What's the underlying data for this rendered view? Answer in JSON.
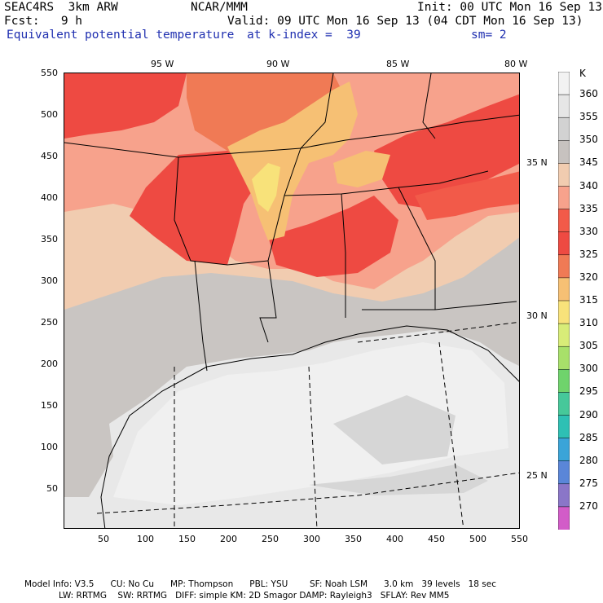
{
  "header": {
    "model": "SEAC4RS  3km ARW",
    "org": "NCAR/MMM",
    "init": "Init: 00 UTC Mon 16 Sep 13",
    "fcst": "Fcst:   9 h",
    "valid": "Valid: 09 UTC Mon 16 Sep 13 (04 CDT Mon 16 Sep 13)",
    "field": "Equivalent potential temperature",
    "kindex": "at k-index =  39",
    "smooth": "sm= 2"
  },
  "axes": {
    "x_ticks": [
      "50",
      "100",
      "150",
      "200",
      "250",
      "300",
      "350",
      "400",
      "450",
      "500",
      "550"
    ],
    "y_ticks": [
      "50",
      "100",
      "150",
      "200",
      "250",
      "300",
      "350",
      "400",
      "450",
      "500",
      "550"
    ],
    "lon_labels": [
      "95 W",
      "90 W",
      "85 W",
      "80 W"
    ],
    "lat_labels": [
      "35 N",
      "30 N",
      "25 N"
    ]
  },
  "colorbar": {
    "unit": "K",
    "levels": [
      "360",
      "355",
      "350",
      "345",
      "340",
      "335",
      "330",
      "325",
      "320",
      "315",
      "310",
      "305",
      "300",
      "295",
      "290",
      "285",
      "280",
      "275",
      "270"
    ],
    "colors": [
      "#f2f2f2",
      "#e6e6e6",
      "#d2d2d2",
      "#c7c2bf",
      "#f1ccb0",
      "#f7a28c",
      "#f25a49",
      "#ee4a42",
      "#f07a55",
      "#f6c074",
      "#f8e27a",
      "#d8ec78",
      "#a8e06a",
      "#6fd36c",
      "#46c89a",
      "#2ec0b4",
      "#3aa4d8",
      "#5a86d8",
      "#8a76c8",
      "#d25cc8"
    ]
  },
  "footer": {
    "line1": "Model Info: V3.5      CU: No Cu      MP: Thompson      PBL: YSU        SF: Noah LSM      3.0 km   39 levels   18 sec",
    "line2": "LW: RRTMG    SW: RRTMG   DIFF: simple KM: 2D Smagor DAMP: Rayleigh3   SFLAY: Rev MM5"
  }
}
